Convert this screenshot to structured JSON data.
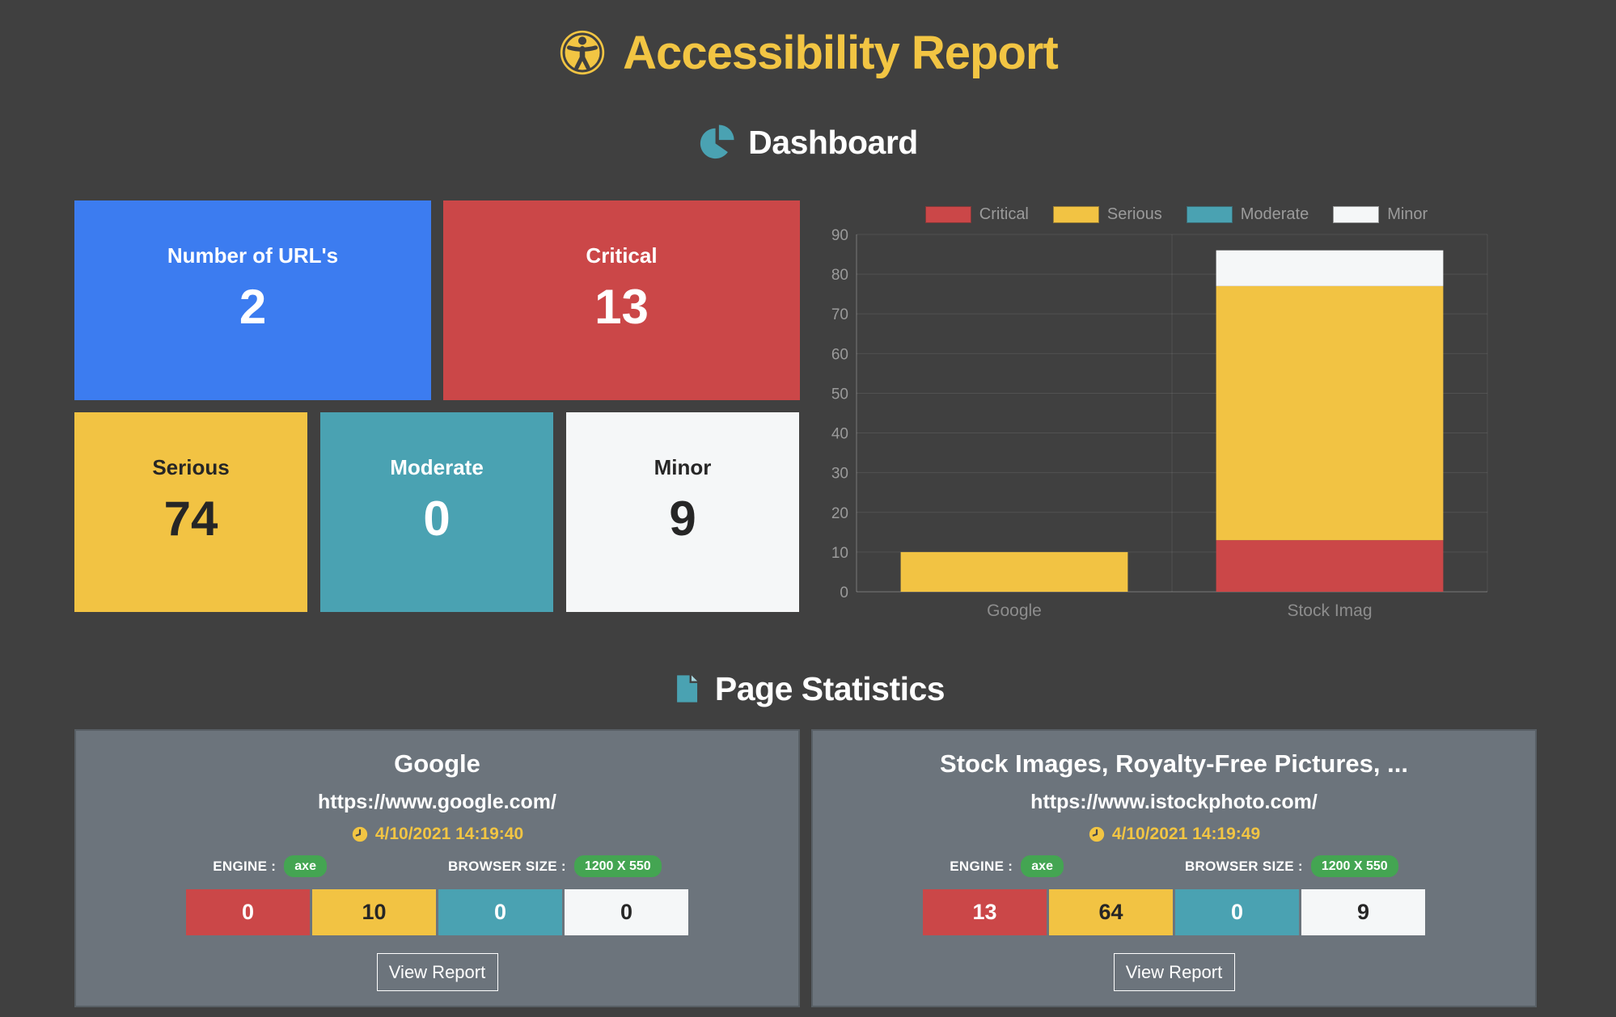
{
  "header": {
    "title": "Accessibility Report"
  },
  "colors": {
    "background": "#404040",
    "gold": "#F2C543",
    "red": "#CB4748",
    "yellow": "#F2C343",
    "teal": "#4AA2B2",
    "blue": "#3C7CF0",
    "off_white": "#F5F7F8",
    "dark_text": "#262626",
    "stats_card_bg": "#6C747C",
    "green_badge": "#44A552",
    "axis_text": "#9B9B9B",
    "category_text": "#8D8D8D"
  },
  "dashboard": {
    "title": "Dashboard",
    "cards": [
      {
        "label": "Number of URL's",
        "value": "2",
        "bg": "#3C7CF0",
        "fg": "#FFFFFF"
      },
      {
        "label": "Critical",
        "value": "13",
        "bg": "#CB4748",
        "fg": "#FFFFFF"
      },
      {
        "label": "Serious",
        "value": "74",
        "bg": "#F2C343",
        "fg": "#262626"
      },
      {
        "label": "Moderate",
        "value": "0",
        "bg": "#4AA2B2",
        "fg": "#FFFFFF"
      },
      {
        "label": "Minor",
        "value": "9",
        "bg": "#F5F7F8",
        "fg": "#262626"
      }
    ]
  },
  "chart_data": {
    "type": "bar",
    "stacked": true,
    "categories": [
      "Google",
      "Stock Imag"
    ],
    "series": [
      {
        "name": "Critical",
        "color": "#CB4748",
        "values": [
          0,
          13
        ]
      },
      {
        "name": "Serious",
        "color": "#F2C343",
        "values": [
          10,
          64
        ]
      },
      {
        "name": "Moderate",
        "color": "#4AA2B2",
        "values": [
          0,
          0
        ]
      },
      {
        "name": "Minor",
        "color": "#F5F7F8",
        "values": [
          0,
          9
        ]
      }
    ],
    "ylim": [
      0,
      90
    ],
    "tick_step": 10,
    "grid": true,
    "legend_position": "top"
  },
  "page_statistics": {
    "title": "Page Statistics",
    "cards": [
      {
        "title": "Google",
        "url": "https://www.google.com/",
        "timestamp": "4/10/2021 14:19:40",
        "engine_label": "ENGINE :",
        "engine_value": "axe",
        "browser_label": "BROWSER SIZE :",
        "browser_value": "1200 X 550",
        "critical": "0",
        "serious": "10",
        "moderate": "0",
        "minor": "0",
        "button_label": "View Report"
      },
      {
        "title": "Stock Images, Royalty-Free Pictures, ...",
        "url": "https://www.istockphoto.com/",
        "timestamp": "4/10/2021 14:19:49",
        "engine_label": "ENGINE :",
        "engine_value": "axe",
        "browser_label": "BROWSER SIZE :",
        "browser_value": "1200 X 550",
        "critical": "13",
        "serious": "64",
        "moderate": "0",
        "minor": "9",
        "button_label": "View Report"
      }
    ]
  }
}
